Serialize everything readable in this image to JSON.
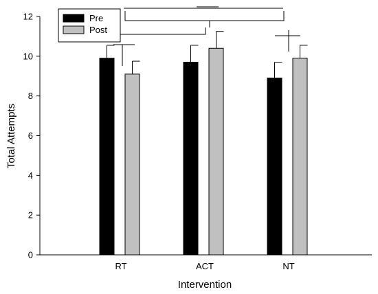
{
  "chart_data": {
    "type": "bar",
    "xlabel": "Intervention",
    "ylabel": "Total Attempts",
    "ylim": [
      0,
      12
    ],
    "yticks": [
      0,
      2,
      4,
      6,
      8,
      10,
      12
    ],
    "categories": [
      "RT",
      "ACT",
      "NT"
    ],
    "series": [
      {
        "name": "Pre",
        "color": "#000000",
        "values": [
          9.9,
          9.7,
          8.9
        ],
        "errors": [
          0.65,
          0.85,
          0.8
        ]
      },
      {
        "name": "Post",
        "color": "#c0c0c0",
        "values": [
          9.1,
          10.4,
          9.9
        ],
        "errors": [
          0.65,
          0.85,
          0.65
        ]
      }
    ],
    "legend": {
      "position": "top-left"
    },
    "grid": false,
    "annotations": "significance brackets between groups"
  }
}
